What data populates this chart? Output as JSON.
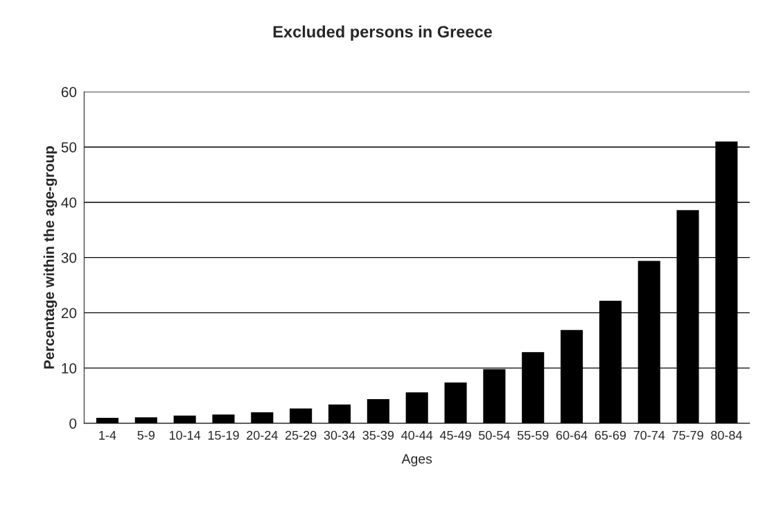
{
  "chart_data": {
    "type": "bar",
    "title": "Excluded persons in Greece",
    "xlabel": "Ages",
    "ylabel": "Percentage within the age-group",
    "categories": [
      "1-4",
      "5-9",
      "10-14",
      "15-19",
      "20-24",
      "25-29",
      "30-34",
      "35-39",
      "40-44",
      "45-49",
      "50-54",
      "55-59",
      "60-64",
      "65-69",
      "70-74",
      "75-79",
      "80-84"
    ],
    "values": [
      0.9,
      1.0,
      1.3,
      1.5,
      1.9,
      2.6,
      3.3,
      4.3,
      5.5,
      7.3,
      9.7,
      12.8,
      16.8,
      22.1,
      29.3,
      38.5,
      50.9
    ],
    "color": "#000000",
    "ylim": [
      0,
      60
    ],
    "yticks": [
      0,
      10,
      20,
      30,
      40,
      50,
      60
    ],
    "grid": "y"
  }
}
